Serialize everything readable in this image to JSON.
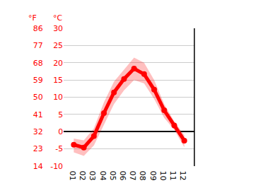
{
  "chart_data": {
    "type": "line",
    "categories": [
      "01",
      "02",
      "03",
      "04",
      "05",
      "06",
      "07",
      "08",
      "09",
      "10",
      "11",
      "12"
    ],
    "values": [
      -3.8,
      -4.6,
      -1.3,
      5.4,
      11.4,
      15.3,
      18.3,
      16.7,
      12.2,
      6.2,
      1.8,
      -2.6
    ],
    "min": [
      -6,
      -7,
      -4,
      2,
      8,
      12,
      15,
      14,
      9.5,
      4,
      0.5,
      -4.5
    ],
    "max": [
      -2,
      -2.5,
      1,
      8.5,
      14.5,
      18,
      21.5,
      20,
      15,
      8,
      3,
      -1
    ],
    "color": "#ff0000",
    "marker": "circle",
    "y_label": "°C",
    "y2_label": "°F",
    "ylim": [
      -10,
      30
    ],
    "yticks": [
      -10,
      -5,
      0,
      5,
      10,
      15,
      20,
      25,
      30
    ],
    "y2lim": [
      14,
      86
    ],
    "y2ticks": [
      14,
      23,
      32,
      41,
      50,
      59,
      68,
      77,
      86
    ],
    "grid": true
  }
}
